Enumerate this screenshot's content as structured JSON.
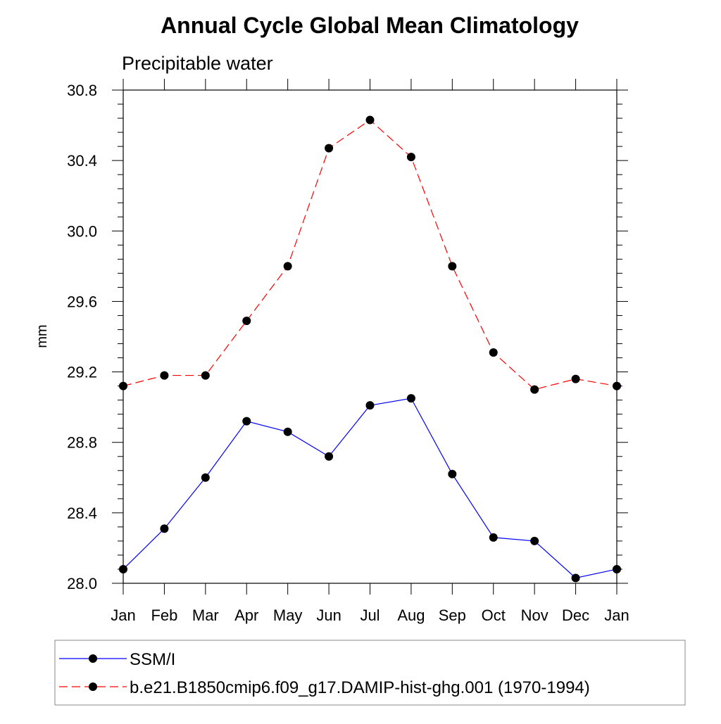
{
  "chart_data": {
    "type": "line",
    "title": "Annual Cycle Global Mean Climatology",
    "subtitle": "Precipitable water",
    "xlabel": "",
    "ylabel": "mm",
    "categories": [
      "Jan",
      "Feb",
      "Mar",
      "Apr",
      "May",
      "Jun",
      "Jul",
      "Aug",
      "Sep",
      "Oct",
      "Nov",
      "Dec",
      "Jan"
    ],
    "ylim": [
      28.0,
      30.8
    ],
    "yticks": [
      "28.0",
      "28.4",
      "28.8",
      "29.2",
      "29.6",
      "30.0",
      "30.4",
      "30.8"
    ],
    "grid": false,
    "legend_position": "bottom",
    "series": [
      {
        "name": "SSM/I",
        "color": "#0000ff",
        "line_style": "solid",
        "marker": "filled-circle",
        "values": [
          28.08,
          28.31,
          28.6,
          28.92,
          28.86,
          28.72,
          29.01,
          29.05,
          28.62,
          28.26,
          28.24,
          28.03,
          28.08
        ]
      },
      {
        "name": "b.e21.B1850cmip6.f09_g17.DAMIP-hist-ghg.001 (1970-1994)",
        "color": "#ff0000",
        "line_style": "dashed",
        "marker": "filled-circle",
        "values": [
          29.12,
          29.18,
          29.18,
          29.49,
          29.8,
          30.47,
          30.63,
          30.42,
          29.8,
          29.31,
          29.1,
          29.16,
          29.12
        ]
      }
    ]
  }
}
